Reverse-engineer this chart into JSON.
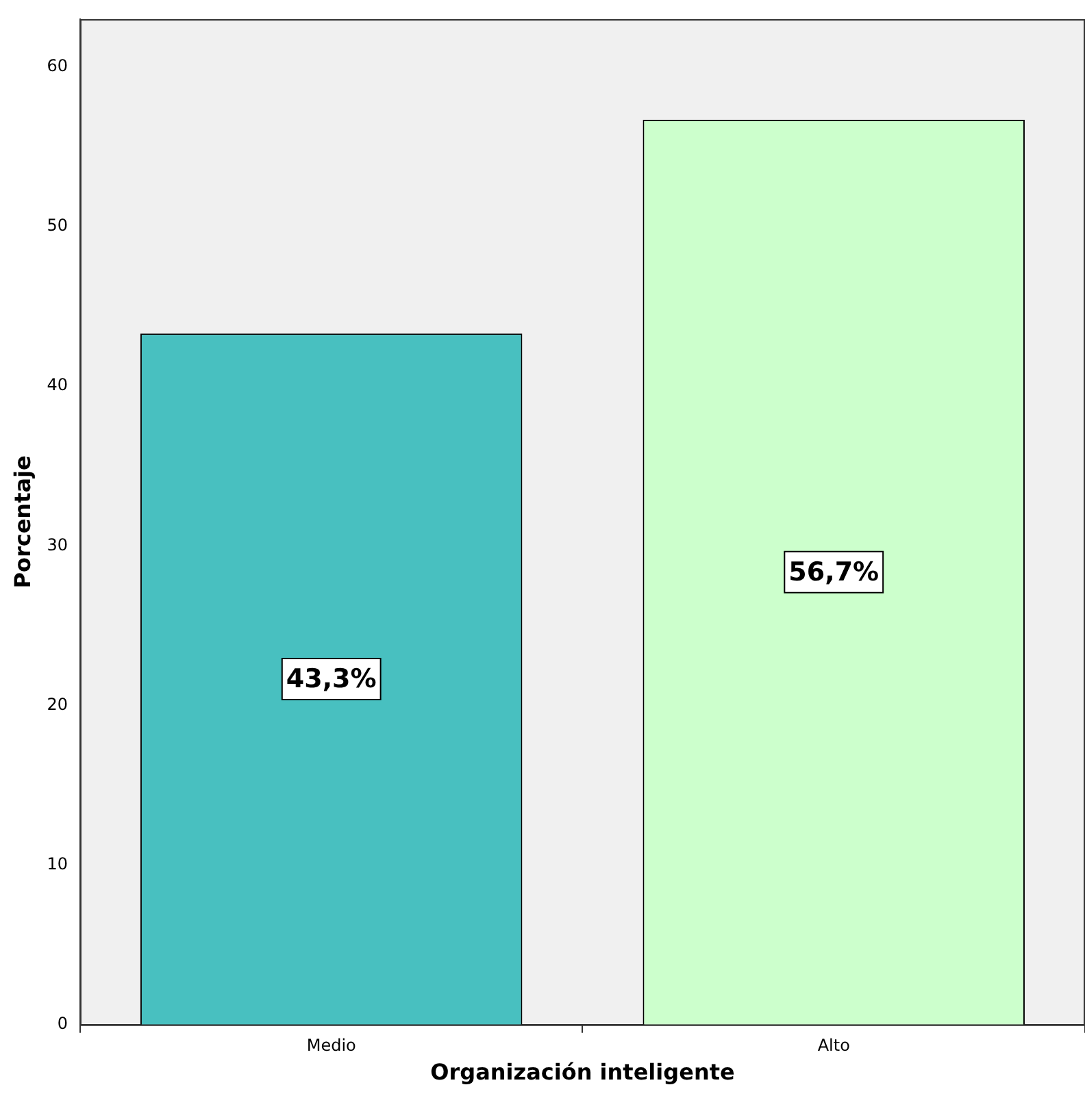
{
  "chart_data": {
    "type": "bar",
    "xlabel": "Organización inteligente",
    "ylabel": "Porcentaje",
    "categories": [
      "Medio",
      "Alto"
    ],
    "values": [
      43.3,
      56.7
    ],
    "colors": [
      "#48c0c0",
      "#ccffcc"
    ],
    "value_labels": [
      "43,3%",
      "56,7%"
    ],
    "ylim": [
      0,
      63
    ],
    "yticks": [
      0,
      10,
      20,
      30,
      40,
      50,
      60
    ],
    "grid": false,
    "legend": false
  }
}
